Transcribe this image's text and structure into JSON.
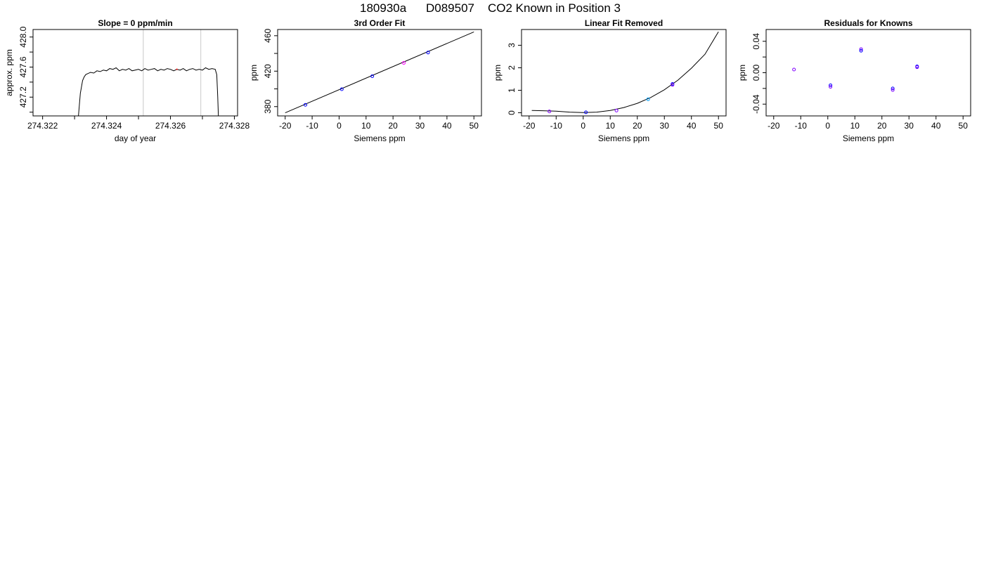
{
  "figure": {
    "title_parts": [
      "180930a",
      "D089507",
      "CO2 Known in Position  3"
    ]
  },
  "chart_data": [
    {
      "type": "line",
      "title": "Slope =  0  ppm/min",
      "xlabel": "day of year",
      "ylabel": "approx. ppm",
      "xlim": [
        274.3217,
        274.3281
      ],
      "ylim": [
        426.95,
        428.1
      ],
      "x_ticks": [
        274.322,
        274.323,
        274.324,
        274.325,
        274.326,
        274.327,
        274.328
      ],
      "x_tick_labels": [
        "274.322",
        "",
        "274.324",
        "",
        "274.326",
        "",
        "274.328"
      ],
      "y_ticks": [
        427.0,
        427.2,
        427.4,
        427.6,
        427.8,
        428.0
      ],
      "y_tick_labels": [
        "",
        "427.2",
        "",
        "427.6",
        "",
        "428.0"
      ],
      "vlines": [
        274.32515,
        274.32695
      ],
      "vline_color": "#c8c8c8",
      "line_color": "#000000",
      "marker": {
        "x": 274.3262,
        "y": 427.57,
        "color": "#ff0000"
      },
      "series": [
        {
          "x": [
            274.32312,
            274.32318,
            274.32325,
            274.3233,
            274.32335,
            274.3234,
            274.3235,
            274.3236,
            274.3237,
            274.3238,
            274.3239,
            274.324,
            274.3241,
            274.3242,
            274.3243,
            274.3244,
            274.3245,
            274.3246,
            274.3247,
            274.3248,
            274.3249,
            274.325,
            274.3251,
            274.3252,
            274.3253,
            274.3254,
            274.3255,
            274.3256,
            274.3257,
            274.3258,
            274.3259,
            274.326,
            274.3261,
            274.3262,
            274.3263,
            274.3264,
            274.3265,
            274.3266,
            274.3267,
            274.3268,
            274.3269,
            274.327,
            274.3271,
            274.3272,
            274.3273,
            274.3274,
            274.32745,
            274.32748,
            274.3275
          ],
          "y": [
            426.95,
            427.25,
            427.42,
            427.47,
            427.5,
            427.51,
            427.53,
            427.52,
            427.55,
            427.54,
            427.56,
            427.55,
            427.58,
            427.57,
            427.59,
            427.55,
            427.57,
            427.56,
            427.58,
            427.55,
            427.56,
            427.57,
            427.55,
            427.58,
            427.56,
            427.57,
            427.58,
            427.55,
            427.57,
            427.56,
            427.58,
            427.57,
            427.55,
            427.57,
            427.56,
            427.58,
            427.55,
            427.57,
            427.58,
            427.56,
            427.57,
            427.56,
            427.59,
            427.57,
            427.58,
            427.57,
            427.5,
            427.2,
            426.95
          ]
        }
      ]
    },
    {
      "type": "scatter",
      "title": "3rd Order Fit",
      "xlabel": "Siemens ppm",
      "ylabel": "ppm",
      "xlim": [
        -22.8,
        52.8
      ],
      "ylim": [
        369.5,
        467.0
      ],
      "x_ticks": [
        -20,
        -10,
        0,
        10,
        20,
        30,
        40,
        50
      ],
      "x_tick_labels": [
        "-20",
        "-10",
        "0",
        "10",
        "20",
        "30",
        "40",
        "50"
      ],
      "y_ticks": [
        380,
        400,
        420,
        440,
        460
      ],
      "y_tick_labels": [
        "380",
        "",
        "420",
        "",
        "460"
      ],
      "fit_line": {
        "x": [
          -20,
          50
        ],
        "y": [
          373,
          464.3
        ]
      },
      "points": [
        {
          "x": -12.5,
          "y": 382.0,
          "color": "#0000ff"
        },
        {
          "x": 1.0,
          "y": 399.6,
          "color": "#0000ff"
        },
        {
          "x": 12.3,
          "y": 414.3,
          "color": "#0000ff"
        },
        {
          "x": 24.0,
          "y": 429.3,
          "color": "#ff00ff"
        },
        {
          "x": 33.0,
          "y": 441.0,
          "color": "#0000ff"
        }
      ]
    },
    {
      "type": "scatter",
      "title": "Linear Fit Removed",
      "xlabel": "Siemens ppm",
      "ylabel": "ppm",
      "xlim": [
        -22.8,
        52.8
      ],
      "ylim": [
        -0.14,
        3.7
      ],
      "x_ticks": [
        -20,
        -10,
        0,
        10,
        20,
        30,
        40,
        50
      ],
      "x_tick_labels": [
        "-20",
        "-10",
        "0",
        "10",
        "20",
        "30",
        "40",
        "50"
      ],
      "y_ticks": [
        0,
        1,
        2,
        3
      ],
      "y_tick_labels": [
        "0",
        "1",
        "2",
        "3"
      ],
      "curve": {
        "x": [
          -19,
          -15,
          -10,
          -5,
          0,
          5,
          10,
          15,
          20,
          25,
          30,
          35,
          40,
          45,
          50
        ],
        "y": [
          0.1,
          0.09,
          0.07,
          0.03,
          0.01,
          0.03,
          0.1,
          0.23,
          0.42,
          0.68,
          1.02,
          1.45,
          1.98,
          2.6,
          3.6
        ]
      },
      "points": [
        {
          "x": -12.5,
          "y": 0.06,
          "color": "#8000ff"
        },
        {
          "x": 1.0,
          "y": 0.02,
          "color": "#0000ff"
        },
        {
          "x": 12.3,
          "y": 0.1,
          "color": "#8000ff"
        },
        {
          "x": 24.0,
          "y": 0.6,
          "color": "#00a0ff"
        },
        {
          "x": 33.0,
          "y": 1.28,
          "color": "#0000ff"
        },
        {
          "x": 33.0,
          "y": 1.24,
          "color": "#8000ff"
        }
      ]
    },
    {
      "type": "scatter",
      "title": "Residuals for Knowns",
      "xlabel": "Siemens ppm",
      "ylabel": "ppm",
      "xlim": [
        -22.8,
        52.8
      ],
      "ylim": [
        -0.055,
        0.055
      ],
      "x_ticks": [
        -20,
        -10,
        0,
        10,
        20,
        30,
        40,
        50
      ],
      "x_tick_labels": [
        "-20",
        "-10",
        "0",
        "10",
        "20",
        "30",
        "40",
        "50"
      ],
      "y_ticks": [
        -0.04,
        -0.02,
        0.0,
        0.02,
        0.04
      ],
      "y_tick_labels": [
        "-0.04",
        "",
        "0.00",
        "",
        "0.04"
      ],
      "points": [
        {
          "x": -12.5,
          "y": 0.004,
          "color": "#8000ff"
        },
        {
          "x": 1.0,
          "y": -0.016,
          "color": "#0000ff"
        },
        {
          "x": 1.0,
          "y": -0.018,
          "color": "#8000ff"
        },
        {
          "x": 12.3,
          "y": 0.03,
          "color": "#8000ff"
        },
        {
          "x": 12.3,
          "y": 0.028,
          "color": "#0000ff"
        },
        {
          "x": 24.0,
          "y": -0.02,
          "color": "#0000ff"
        },
        {
          "x": 24.0,
          "y": -0.022,
          "color": "#8000ff"
        },
        {
          "x": 33.0,
          "y": 0.008,
          "color": "#0000ff"
        },
        {
          "x": 33.0,
          "y": 0.007,
          "color": "#8000ff"
        }
      ]
    }
  ]
}
